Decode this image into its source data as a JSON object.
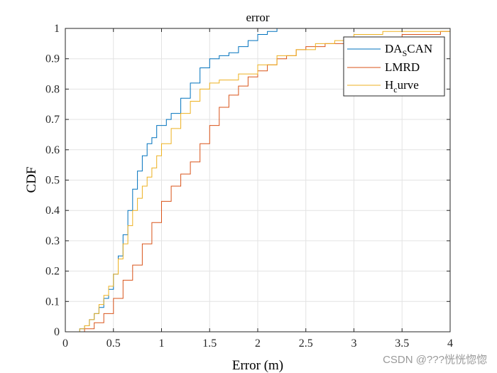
{
  "chart_data": {
    "type": "line",
    "step": true,
    "title": "error",
    "xlabel": "Error (m)",
    "ylabel": "CDF",
    "xlim": [
      0,
      4
    ],
    "ylim": [
      0,
      1
    ],
    "xticks": [
      0,
      0.5,
      1,
      1.5,
      2,
      2.5,
      3,
      3.5,
      4
    ],
    "xtick_labels": [
      "0",
      "0.5",
      "1",
      "1.5",
      "2",
      "2.5",
      "3",
      "3.5",
      "4"
    ],
    "yticks": [
      0,
      0.1,
      0.2,
      0.3,
      0.4,
      0.5,
      0.6,
      0.7,
      0.8,
      0.9,
      1
    ],
    "ytick_labels": [
      "0",
      "0.1",
      "0.2",
      "0.3",
      "0.4",
      "0.5",
      "0.6",
      "0.7",
      "0.8",
      "0.9",
      "1"
    ],
    "grid": true,
    "legend_position": "top-right",
    "series": [
      {
        "name": "DA_S CAN",
        "legend_main": "DA",
        "legend_sub": "S",
        "legend_rest": "CAN",
        "color": "#0072BD",
        "x": [
          0.08,
          0.15,
          0.2,
          0.25,
          0.3,
          0.35,
          0.4,
          0.45,
          0.5,
          0.55,
          0.6,
          0.65,
          0.7,
          0.75,
          0.8,
          0.85,
          0.9,
          0.95,
          1.0,
          1.05,
          1.1,
          1.2,
          1.3,
          1.4,
          1.5,
          1.6,
          1.7,
          1.8,
          1.9,
          2.0,
          2.1,
          2.2,
          2.3
        ],
        "y": [
          0.0,
          0.01,
          0.02,
          0.04,
          0.06,
          0.08,
          0.11,
          0.14,
          0.19,
          0.25,
          0.32,
          0.4,
          0.47,
          0.53,
          0.58,
          0.62,
          0.64,
          0.68,
          0.68,
          0.7,
          0.72,
          0.77,
          0.82,
          0.87,
          0.9,
          0.91,
          0.92,
          0.94,
          0.96,
          0.98,
          0.99,
          1.0,
          1.0
        ]
      },
      {
        "name": "LMRD",
        "color": "#D95319",
        "x": [
          0.08,
          0.2,
          0.3,
          0.4,
          0.5,
          0.6,
          0.7,
          0.8,
          0.9,
          1.0,
          1.1,
          1.2,
          1.3,
          1.4,
          1.5,
          1.6,
          1.7,
          1.8,
          1.9,
          2.0,
          2.1,
          2.2,
          2.3,
          2.4,
          2.5,
          2.7,
          2.9,
          3.1,
          3.3,
          3.5,
          3.7,
          3.9,
          4.0
        ],
        "y": [
          0.0,
          0.01,
          0.03,
          0.06,
          0.11,
          0.17,
          0.22,
          0.29,
          0.36,
          0.43,
          0.48,
          0.52,
          0.56,
          0.62,
          0.68,
          0.74,
          0.78,
          0.81,
          0.84,
          0.86,
          0.88,
          0.9,
          0.91,
          0.93,
          0.94,
          0.95,
          0.96,
          0.96,
          0.97,
          0.98,
          0.98,
          0.99,
          0.99
        ]
      },
      {
        "name": "H_c urve",
        "legend_main": "H",
        "legend_sub": "c",
        "legend_rest": "urve",
        "color": "#EDB120",
        "x": [
          0.08,
          0.15,
          0.2,
          0.25,
          0.3,
          0.35,
          0.4,
          0.45,
          0.5,
          0.55,
          0.6,
          0.65,
          0.7,
          0.75,
          0.8,
          0.85,
          0.9,
          0.95,
          1.0,
          1.1,
          1.2,
          1.3,
          1.4,
          1.5,
          1.6,
          1.8,
          2.0,
          2.2,
          2.4,
          2.6,
          2.8,
          3.0,
          3.3,
          4.0
        ],
        "y": [
          0.0,
          0.01,
          0.02,
          0.04,
          0.06,
          0.09,
          0.12,
          0.15,
          0.19,
          0.24,
          0.29,
          0.35,
          0.4,
          0.44,
          0.48,
          0.51,
          0.54,
          0.58,
          0.62,
          0.67,
          0.72,
          0.76,
          0.8,
          0.82,
          0.83,
          0.85,
          0.88,
          0.91,
          0.93,
          0.95,
          0.96,
          0.98,
          0.99,
          1.0
        ]
      }
    ]
  },
  "watermark": "CSDN @???恍恍惚惚"
}
